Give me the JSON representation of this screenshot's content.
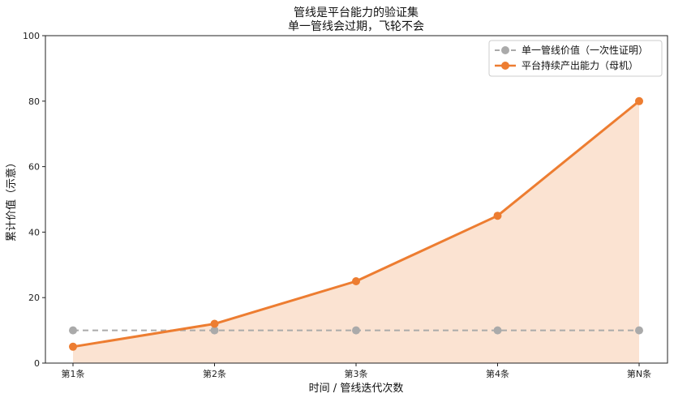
{
  "chart_data": {
    "type": "line",
    "title_line1": "管线是平台能力的验证集",
    "title_line2": "单一管线会过期，飞轮不会",
    "xlabel": "时间 / 管线迭代次数",
    "ylabel": "累计价值（示意）",
    "categories": [
      "第1条",
      "第2条",
      "第3条",
      "第4条",
      "第N条"
    ],
    "ylim": [
      0,
      100
    ],
    "yticks": [
      0,
      20,
      40,
      60,
      80,
      100
    ],
    "grid": false,
    "legend_position": "top-right",
    "series": [
      {
        "name": "单一管线价值（一次性证明）",
        "values": [
          10,
          10,
          10,
          10,
          10
        ],
        "color": "#aaaaaa",
        "style": "dashed",
        "fill": false
      },
      {
        "name": "平台持续产出能力（母机）",
        "values": [
          5,
          12,
          25,
          45,
          80
        ],
        "color": "#ed7d31",
        "style": "solid",
        "fill": true,
        "fill_color": "#fbe3d2"
      }
    ]
  }
}
